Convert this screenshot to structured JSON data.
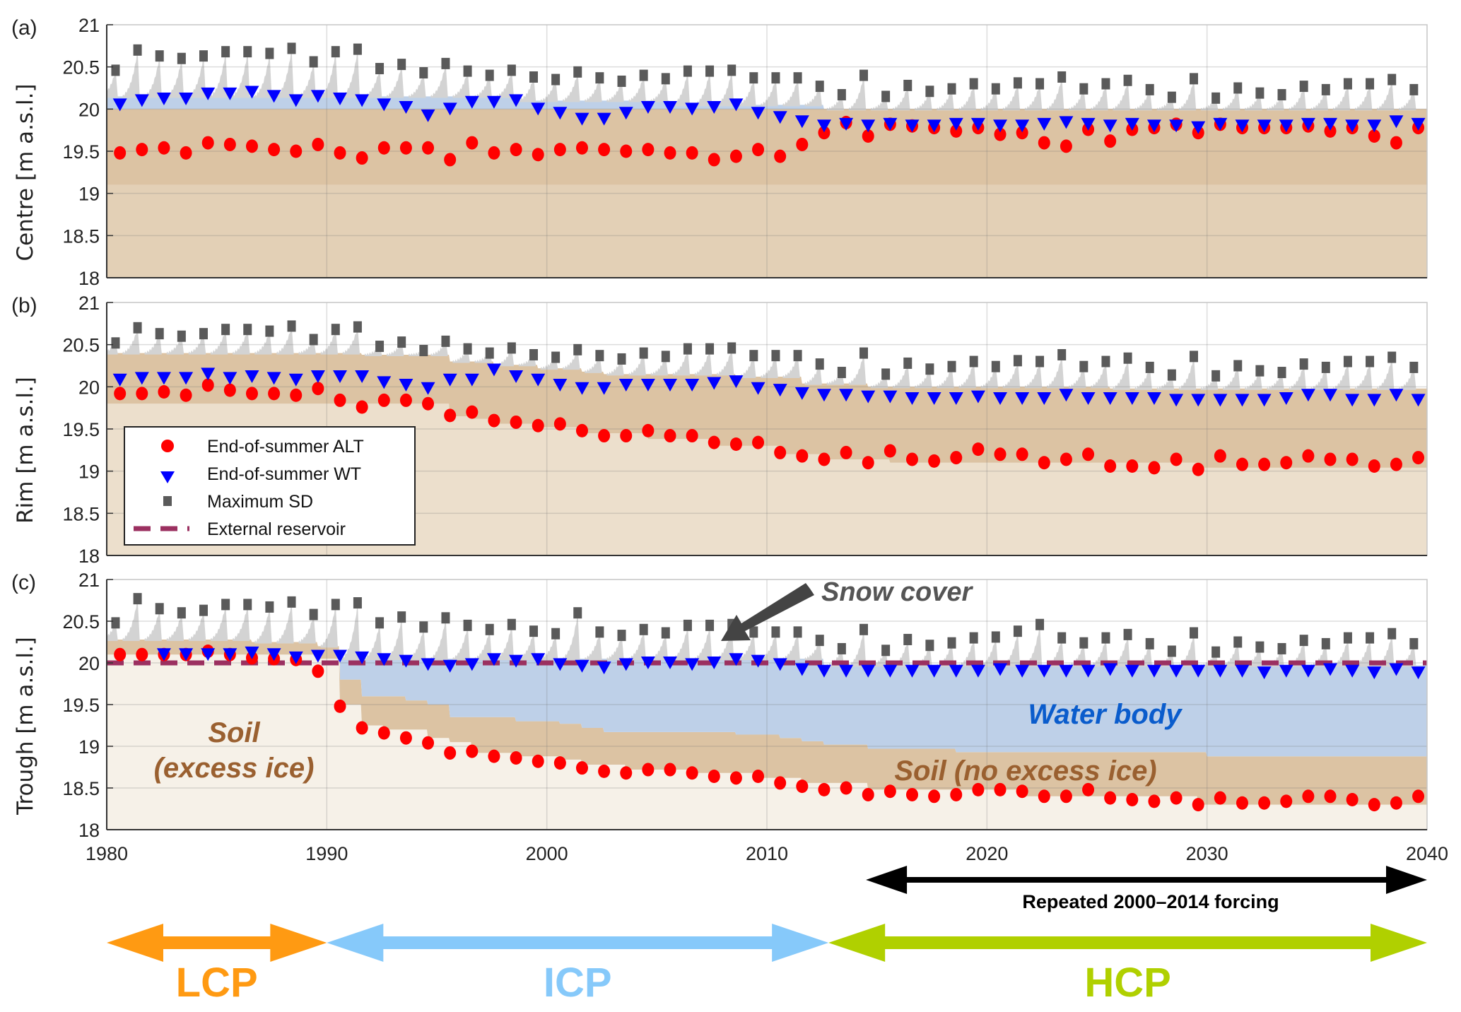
{
  "chart_data": {
    "type": "scatter",
    "xlim": [
      1980,
      2040
    ],
    "xticks": [
      "1980",
      "1990",
      "2000",
      "2010",
      "2020",
      "2030",
      "2040"
    ],
    "grid": true,
    "colors": {
      "alt": "#ff0000",
      "wt": "#0000ff",
      "sd": "#5a5a5a",
      "reservoir": "#9b3060",
      "snow": "#d3d3d3",
      "water": "#bed0e8",
      "soil": "#dcc3a3",
      "soil_light_a": "#e3d0b6",
      "soil_light_b": "#ecdfcc",
      "soil_excess_ice": "#f6f1e8"
    },
    "x_end_of_summer": [
      1980.6,
      1981.6,
      1982.6,
      1983.6,
      1984.6,
      1985.6,
      1986.6,
      1987.6,
      1988.6,
      1989.6,
      1990.6,
      1991.6,
      1992.6,
      1993.6,
      1994.6,
      1995.6,
      1996.6,
      1997.6,
      1998.6,
      1999.6,
      2000.6,
      2001.6,
      2002.6,
      2003.6,
      2004.6,
      2005.6,
      2006.6,
      2007.6,
      2008.6,
      2009.6,
      2010.6,
      2011.6,
      2012.6,
      2013.6,
      2014.6,
      2015.6,
      2016.6,
      2017.6,
      2018.6,
      2019.6,
      2020.6,
      2021.6,
      2022.6,
      2023.6,
      2024.6,
      2025.6,
      2026.6,
      2027.6,
      2028.6,
      2029.6,
      2030.6,
      2031.6,
      2032.6,
      2033.6,
      2034.6,
      2035.6,
      2036.6,
      2037.6,
      2038.6,
      2039.6
    ],
    "x_max_sd": [
      1980.4,
      1981.4,
      1982.4,
      1983.4,
      1984.4,
      1985.4,
      1986.4,
      1987.4,
      1988.4,
      1989.4,
      1990.4,
      1991.4,
      1992.4,
      1993.4,
      1994.4,
      1995.4,
      1996.4,
      1997.4,
      1998.4,
      1999.4,
      2000.4,
      2001.4,
      2002.4,
      2003.4,
      2004.4,
      2005.4,
      2006.4,
      2007.4,
      2008.4,
      2009.4,
      2010.4,
      2011.4,
      2012.4,
      2013.4,
      2014.4,
      2015.4,
      2016.4,
      2017.4,
      2018.4,
      2019.4,
      2020.4,
      2021.4,
      2022.4,
      2023.4,
      2024.4,
      2025.4,
      2026.4,
      2027.4,
      2028.4,
      2029.4,
      2030.4,
      2031.4,
      2032.4,
      2033.4,
      2034.4,
      2035.4,
      2036.4,
      2037.4,
      2038.4,
      2039.4
    ],
    "legend": {
      "placement": "panel-b lower-left",
      "entries": [
        {
          "key": "alt",
          "label": "End-of-summer ALT"
        },
        {
          "key": "wt",
          "label": "End-of-summer WT"
        },
        {
          "key": "sd",
          "label": "Maximum SD"
        },
        {
          "key": "reservoir",
          "label": "External reservoir"
        }
      ]
    },
    "panels": [
      {
        "tag": "(a)",
        "ylabel": "Centre [m a.s.l.]",
        "ylim": [
          18,
          21
        ],
        "yticks": [
          "18",
          "18.5",
          "19",
          "19.5",
          "20",
          "20.5",
          "21"
        ],
        "light_soil": "soil_light_a",
        "alt": [
          19.48,
          19.52,
          19.54,
          19.48,
          19.6,
          19.58,
          19.56,
          19.52,
          19.5,
          19.58,
          19.48,
          19.42,
          19.54,
          19.54,
          19.54,
          19.4,
          19.6,
          19.48,
          19.52,
          19.46,
          19.52,
          19.54,
          19.52,
          19.5,
          19.52,
          19.48,
          19.48,
          19.4,
          19.44,
          19.52,
          19.44,
          19.58,
          19.72,
          19.84,
          19.68,
          19.82,
          19.8,
          19.78,
          19.74,
          19.78,
          19.7,
          19.72,
          19.6,
          19.56,
          19.76,
          19.62,
          19.76,
          19.78,
          19.82,
          19.72,
          19.82,
          19.78,
          19.78,
          19.78,
          19.8,
          19.74,
          19.78,
          19.68,
          19.6,
          19.78
        ],
        "wt": [
          20.05,
          20.1,
          20.12,
          20.12,
          20.18,
          20.18,
          20.2,
          20.15,
          20.1,
          20.15,
          20.12,
          20.1,
          20.05,
          20.02,
          19.92,
          20.0,
          20.08,
          20.08,
          20.1,
          20.0,
          19.95,
          19.88,
          19.88,
          19.95,
          20.02,
          20.02,
          20.0,
          20.02,
          20.05,
          19.95,
          19.9,
          19.85,
          19.8,
          19.82,
          19.8,
          19.82,
          19.8,
          19.8,
          19.82,
          19.82,
          19.8,
          19.8,
          19.82,
          19.84,
          19.82,
          19.8,
          19.82,
          19.8,
          19.8,
          19.78,
          19.82,
          19.8,
          19.8,
          19.8,
          19.82,
          19.82,
          19.8,
          19.8,
          19.85,
          19.82
        ],
        "max_sd": [
          20.46,
          20.7,
          20.63,
          20.6,
          20.63,
          20.68,
          20.68,
          20.66,
          20.72,
          20.56,
          20.68,
          20.71,
          20.48,
          20.53,
          20.43,
          20.54,
          20.45,
          20.4,
          20.46,
          20.38,
          20.35,
          20.44,
          20.37,
          20.33,
          20.4,
          20.36,
          20.45,
          20.45,
          20.46,
          20.37,
          20.37,
          20.37,
          20.27,
          20.17,
          20.4,
          20.15,
          20.28,
          20.21,
          20.24,
          20.3,
          20.24,
          20.31,
          20.3,
          20.38,
          20.24,
          20.3,
          20.34,
          20.23,
          20.14,
          20.36,
          20.13,
          20.25,
          20.19,
          20.17,
          20.27,
          20.23,
          20.3,
          20.3,
          20.35,
          20.23
        ],
        "water": {
          "top": {
            "x": [
              1980,
              1998.6,
              2005.6,
              2012.6
            ],
            "y": [
              20.15,
              20.1,
              20.05,
              20.0
            ]
          },
          "bottom": {
            "x": [
              1980
            ],
            "y": [
              20.0
            ]
          }
        },
        "soil": {
          "top": {
            "x": [
              1980
            ],
            "y": [
              20.0
            ]
          },
          "bottom": {
            "x": [
              1980
            ],
            "y": [
              19.1
            ]
          }
        },
        "reservoir": null
      },
      {
        "tag": "(b)",
        "ylabel": "Rim [m a.s.l.]",
        "ylim": [
          18,
          21
        ],
        "yticks": [
          "18",
          "18.5",
          "19",
          "19.5",
          "20",
          "20.5",
          "21"
        ],
        "light_soil": "soil_light_b",
        "alt": [
          19.92,
          19.92,
          19.94,
          19.9,
          20.02,
          19.96,
          19.92,
          19.92,
          19.9,
          19.98,
          19.84,
          19.76,
          19.84,
          19.84,
          19.8,
          19.66,
          19.7,
          19.6,
          19.58,
          19.54,
          19.56,
          19.48,
          19.42,
          19.42,
          19.48,
          19.42,
          19.42,
          19.34,
          19.32,
          19.34,
          19.22,
          19.18,
          19.14,
          19.22,
          19.1,
          19.24,
          19.14,
          19.12,
          19.16,
          19.26,
          19.2,
          19.2,
          19.1,
          19.14,
          19.2,
          19.06,
          19.06,
          19.04,
          19.14,
          19.02,
          19.18,
          19.08,
          19.08,
          19.1,
          19.18,
          19.14,
          19.14,
          19.06,
          19.08,
          19.16
        ],
        "wt": [
          20.08,
          20.1,
          20.1,
          20.1,
          20.15,
          20.1,
          20.12,
          20.1,
          20.08,
          20.12,
          20.12,
          20.12,
          20.05,
          20.02,
          19.98,
          20.08,
          20.08,
          20.2,
          20.12,
          20.08,
          20.02,
          19.98,
          19.98,
          20.02,
          20.02,
          20.02,
          20.02,
          20.04,
          20.06,
          19.98,
          19.96,
          19.92,
          19.9,
          19.9,
          19.88,
          19.88,
          19.86,
          19.86,
          19.86,
          19.88,
          19.86,
          19.86,
          19.86,
          19.9,
          19.86,
          19.86,
          19.86,
          19.86,
          19.84,
          19.84,
          19.84,
          19.84,
          19.84,
          19.86,
          19.9,
          19.9,
          19.84,
          19.84,
          19.9,
          19.84
        ],
        "max_sd": [
          20.52,
          20.7,
          20.63,
          20.6,
          20.63,
          20.68,
          20.68,
          20.66,
          20.72,
          20.56,
          20.68,
          20.71,
          20.48,
          20.53,
          20.43,
          20.54,
          20.45,
          20.4,
          20.46,
          20.38,
          20.35,
          20.44,
          20.37,
          20.33,
          20.4,
          20.36,
          20.45,
          20.45,
          20.46,
          20.37,
          20.37,
          20.37,
          20.27,
          20.17,
          20.4,
          20.15,
          20.28,
          20.21,
          20.24,
          20.3,
          20.24,
          20.31,
          20.3,
          20.38,
          20.24,
          20.3,
          20.34,
          20.23,
          20.14,
          20.36,
          20.13,
          20.25,
          20.19,
          20.17,
          20.27,
          20.23,
          20.3,
          20.3,
          20.35,
          20.23
        ],
        "water": null,
        "soil": {
          "top": {
            "x": [
              1980,
              1991.6,
              1995.6,
              1997.6,
              1999.6,
              2001.6,
              2002.6,
              2008.6,
              2011.6,
              2014.6,
              2025.6
            ],
            "y": [
              20.4,
              20.38,
              20.3,
              20.26,
              20.22,
              20.18,
              20.15,
              20.12,
              20.04,
              20.0,
              19.98
            ]
          },
          "bottom": {
            "x": [
              1980,
              1995.6,
              1996.6,
              1997.6,
              1999.6,
              2001.6,
              2004.6,
              2007.6,
              2010.6,
              2012.6,
              2015.6,
              2029.6
            ],
            "y": [
              19.8,
              19.65,
              19.62,
              19.56,
              19.52,
              19.45,
              19.38,
              19.3,
              19.2,
              19.14,
              19.1,
              19.04
            ]
          }
        },
        "reservoir": null
      },
      {
        "tag": "(c)",
        "ylabel": "Trough [m a.s.l.]",
        "ylim": [
          18,
          21
        ],
        "yticks": [
          "18",
          "18.5",
          "19",
          "19.5",
          "20",
          "20.5",
          "21"
        ],
        "light_soil": "soil_excess_ice",
        "alt": [
          20.1,
          20.1,
          20.1,
          20.1,
          20.14,
          20.1,
          20.06,
          20.05,
          20.04,
          19.9,
          19.48,
          19.22,
          19.16,
          19.1,
          19.04,
          18.92,
          18.94,
          18.88,
          18.86,
          18.82,
          18.8,
          18.74,
          18.7,
          18.68,
          18.72,
          18.72,
          18.68,
          18.64,
          18.62,
          18.64,
          18.56,
          18.52,
          18.48,
          18.5,
          18.42,
          18.46,
          18.42,
          18.4,
          18.42,
          18.48,
          18.48,
          18.46,
          18.4,
          18.4,
          18.48,
          18.38,
          18.36,
          18.34,
          18.38,
          18.3,
          18.38,
          18.32,
          18.32,
          18.34,
          18.4,
          18.4,
          18.36,
          18.3,
          18.32,
          18.4
        ],
        "wt": [
          null,
          null,
          20.1,
          20.1,
          20.1,
          20.1,
          20.12,
          20.1,
          20.06,
          20.08,
          20.08,
          20.06,
          20.04,
          20.02,
          19.98,
          19.96,
          19.98,
          20.04,
          20.02,
          20.04,
          19.98,
          19.96,
          19.94,
          19.98,
          20.0,
          20.0,
          19.98,
          20.0,
          20.04,
          20.02,
          19.98,
          19.92,
          19.9,
          19.9,
          19.9,
          19.9,
          19.9,
          19.9,
          19.9,
          19.9,
          19.92,
          19.9,
          19.9,
          19.9,
          19.9,
          19.92,
          19.9,
          19.9,
          19.9,
          19.9,
          19.9,
          19.9,
          19.88,
          19.9,
          19.9,
          19.92,
          19.9,
          19.88,
          19.92,
          19.88
        ],
        "max_sd": [
          20.48,
          20.77,
          20.65,
          20.6,
          20.63,
          20.7,
          20.7,
          20.67,
          20.73,
          20.58,
          20.7,
          20.72,
          20.48,
          20.55,
          20.43,
          20.54,
          20.45,
          20.4,
          20.46,
          20.38,
          20.35,
          20.6,
          20.37,
          20.33,
          20.4,
          20.36,
          20.45,
          20.45,
          20.46,
          20.37,
          20.37,
          20.37,
          20.27,
          20.17,
          20.4,
          20.15,
          20.28,
          20.21,
          20.24,
          20.3,
          20.31,
          20.38,
          20.46,
          20.3,
          20.24,
          20.3,
          20.34,
          20.23,
          20.14,
          20.36,
          20.13,
          20.25,
          20.19,
          20.17,
          20.27,
          20.23,
          20.3,
          20.3,
          20.35,
          20.23
        ],
        "water": {
          "top": {
            "x": [
              1980,
              1990.6,
              2012.6
            ],
            "y": [
              null,
              20.05,
              19.97
            ]
          },
          "bottom": "soil_top"
        },
        "soil": {
          "top": {
            "x": [
              1980,
              1986.6,
              1989.6,
              1990.6,
              1991.6,
              1993.6,
              1994.6,
              1995.6,
              1998.6,
              2000.6,
              2001.6,
              2002.6,
              2008.6,
              2010.6,
              2011.6,
              2012.6,
              2014.6,
              2018.6,
              2030
            ],
            "y": [
              20.28,
              20.25,
              20.2,
              19.8,
              19.6,
              19.55,
              19.5,
              19.35,
              19.3,
              19.27,
              19.22,
              19.17,
              19.14,
              19.1,
              19.06,
              19.02,
              18.97,
              18.93,
              18.88
            ]
          },
          "bottom": {
            "x": [
              1980,
              1989.6,
              1990.6,
              1991.6,
              1992.6,
              1994.6,
              1995.6,
              1996.6,
              1998.6,
              2000.6,
              2001.6,
              2003.6,
              2006.6,
              2009.6,
              2011.6,
              2014.6,
              2021.6,
              2029.6
            ],
            "y": [
              20.1,
              20.05,
              19.5,
              19.25,
              19.2,
              19.1,
              19.05,
              18.92,
              18.88,
              18.84,
              18.78,
              18.72,
              18.68,
              18.62,
              18.56,
              18.48,
              18.4,
              18.3
            ]
          }
        },
        "reservoir": 20.0
      }
    ],
    "annotations": {
      "snow_cover": "Snow cover",
      "water_body": "Water body",
      "soil_no_excess": "Soil (no excess ice)",
      "soil_excess_line1": "Soil",
      "soil_excess_line2": "(excess ice)"
    },
    "periods": {
      "forcing_label": "Repeated 2000–2014 forcing",
      "forcing_range": [
        2014.5,
        2040
      ],
      "items": [
        {
          "label": "LCP",
          "range": [
            1980,
            1990
          ],
          "color": "#ff9a12"
        },
        {
          "label": "ICP",
          "range": [
            1990,
            2012.8
          ],
          "color": "#86c9fa"
        },
        {
          "label": "HCP",
          "range": [
            2012.8,
            2040
          ],
          "color": "#b0d000"
        }
      ]
    }
  }
}
